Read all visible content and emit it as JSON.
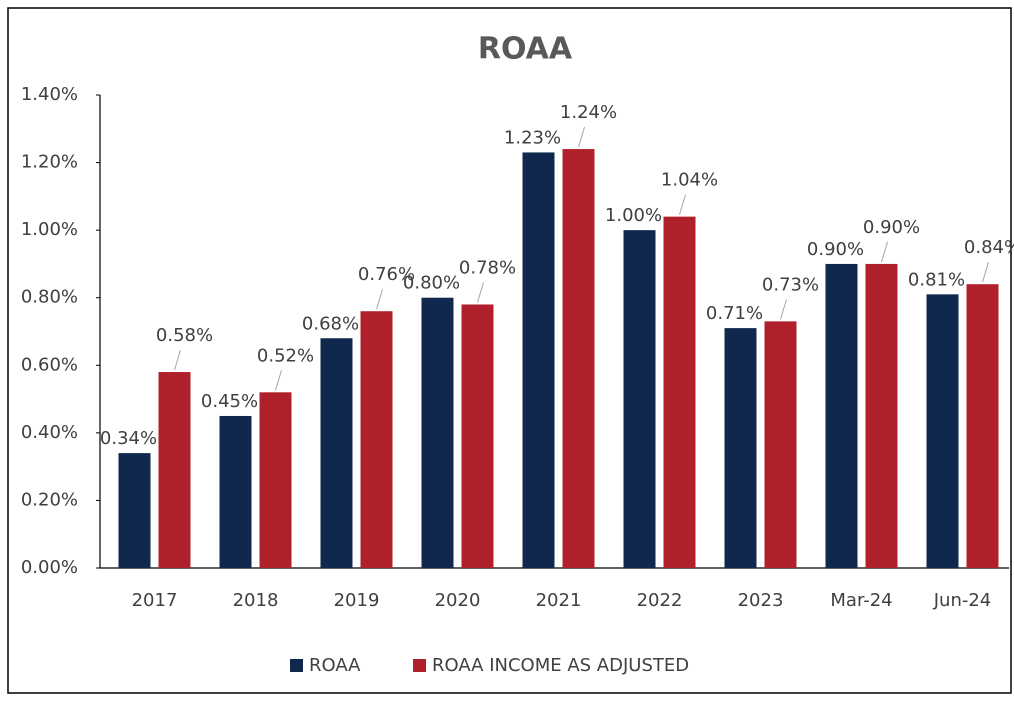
{
  "chart_data": {
    "type": "bar",
    "title": "ROAA",
    "categories": [
      "2017",
      "2018",
      "2019",
      "2020",
      "2021",
      "2022",
      "2023",
      "Mar-24",
      "Jun-24"
    ],
    "series": [
      {
        "name": "ROAA",
        "color": "#10284e",
        "values": [
          0.34,
          0.45,
          0.68,
          0.8,
          1.23,
          1.0,
          0.71,
          0.9,
          0.81
        ],
        "value_labels": [
          "0.34%",
          "0.45%",
          "0.68%",
          "0.80%",
          "1.23%",
          "1.00%",
          "0.71%",
          "0.90%",
          "0.81%"
        ]
      },
      {
        "name": "ROAA INCOME AS ADJUSTED",
        "color": "#b0202a",
        "values": [
          0.58,
          0.52,
          0.76,
          0.78,
          1.24,
          1.04,
          0.73,
          0.9,
          0.84
        ],
        "value_labels": [
          "0.58%",
          "0.52%",
          "0.76%",
          "0.78%",
          "1.24%",
          "1.04%",
          "0.73%",
          "0.90%",
          "0.84%"
        ]
      }
    ],
    "ylim": [
      0,
      1.4
    ],
    "yticks": [
      {
        "value": 0,
        "label": "0.00%"
      },
      {
        "value": 0.2,
        "label": "0.20%"
      },
      {
        "value": 0.4,
        "label": "0.40%"
      },
      {
        "value": 0.6,
        "label": "0.60%"
      },
      {
        "value": 0.8,
        "label": "0.80%"
      },
      {
        "value": 1.0,
        "label": "1.00%"
      },
      {
        "value": 1.2,
        "label": "1.20%"
      },
      {
        "value": 1.4,
        "label": "1.40%"
      }
    ],
    "legend": "bottom"
  }
}
